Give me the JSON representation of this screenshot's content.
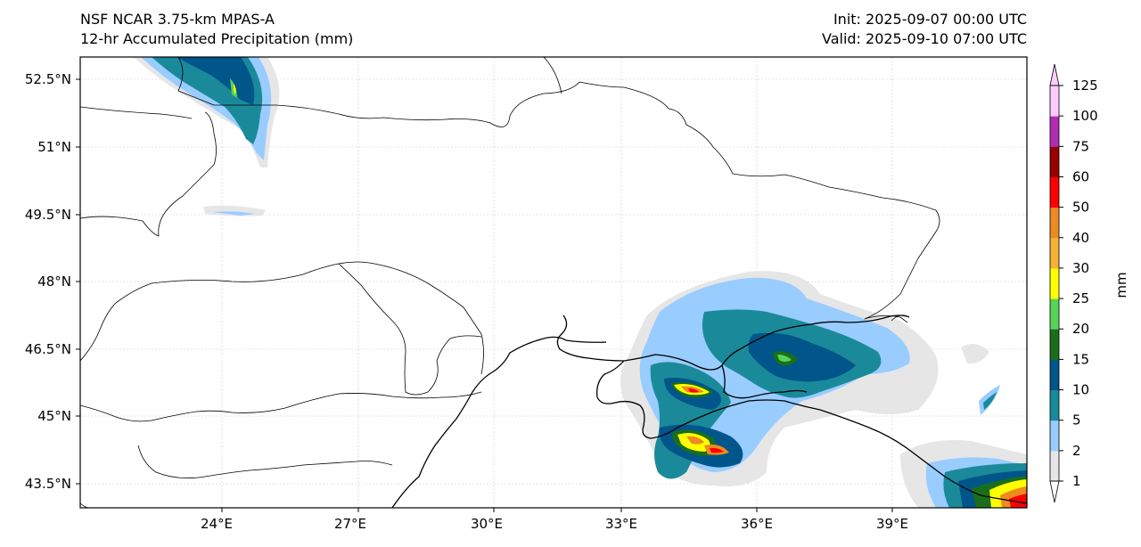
{
  "header": {
    "model": "NSF NCAR 3.75-km MPAS-A",
    "field": "12-hr Accumulated Precipitation (mm)",
    "init": "Init: 2025-09-07 00:00 UTC",
    "valid": "Valid: 2025-09-10 07:00 UTC"
  },
  "map": {
    "lat_labels": [
      "52.5°N",
      "51°N",
      "49.5°N",
      "48°N",
      "46.5°N",
      "45°N",
      "43.5°N"
    ],
    "lon_labels": [
      "24°E",
      "27°E",
      "30°E",
      "33°E",
      "36°E",
      "39°E"
    ]
  },
  "colorbar": {
    "unit": "mm",
    "levels": [
      "1",
      "2",
      "5",
      "10",
      "15",
      "20",
      "25",
      "30",
      "40",
      "50",
      "60",
      "75",
      "100",
      "125"
    ],
    "colors": [
      "#e6e6e6",
      "#99ccff",
      "#1a8a9a",
      "#00558a",
      "#1a6e1a",
      "#55d455",
      "#ffff00",
      "#f5b233",
      "#ee8a22",
      "#ff0000",
      "#990000",
      "#b22cb2",
      "#ffccff"
    ]
  }
}
